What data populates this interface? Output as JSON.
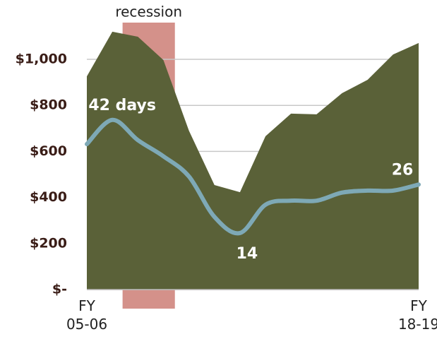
{
  "chart_data": {
    "type": "area",
    "categories": [
      "FY 05-06",
      null,
      null,
      null,
      null,
      null,
      null,
      null,
      null,
      null,
      null,
      null,
      null,
      "FY 18-19"
    ],
    "series": [
      {
        "color": "#5a6138",
        "values": [
          926,
          1120,
          1098,
          997,
          690,
          454,
          423,
          666,
          764,
          761,
          853,
          911,
          1021,
          1071
        ]
      },
      {
        "type": "line",
        "axis": "y2",
        "color": "#7ea9b6",
        "values": [
          36,
          42,
          37,
          33,
          28,
          18,
          14,
          21,
          22,
          22,
          24,
          24.5,
          24.5,
          26
        ],
        "value_labels": [
          null,
          "42 days",
          null,
          null,
          null,
          null,
          "14",
          null,
          null,
          null,
          null,
          null,
          null,
          "26"
        ]
      }
    ],
    "ylim": [
      0,
      1000
    ],
    "yticks": [
      {
        "value": 0,
        "label": "$-"
      },
      {
        "value": 200,
        "label": "$200"
      },
      {
        "value": 400,
        "label": "$400"
      },
      {
        "value": 600,
        "label": "$600"
      },
      {
        "value": 800,
        "label": "$800"
      },
      {
        "value": 1000,
        "label": "$1,000"
      }
    ],
    "y2lim": [
      0,
      57
    ],
    "grid": true,
    "annotations": [
      {
        "text": "recession",
        "x_start": 1.4,
        "x_end": 3.45,
        "color": "#d4918a"
      }
    ]
  }
}
